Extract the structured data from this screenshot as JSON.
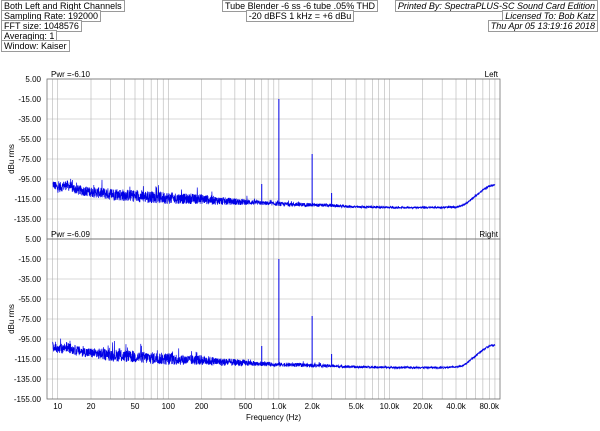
{
  "header": {
    "left": [
      "Both Left and Right Channels",
      "Sampling Rate: 192000",
      "FFT size: 1048576",
      "Averaging: 1",
      "Window: Kaiser"
    ],
    "center": [
      "Tube Blender -6 ss -6 tube .05% THD",
      "-20 dBFS 1 kHz = +6 dBu"
    ],
    "right": [
      "Printed By: SpectraPLUS-SC Sound Card Edition",
      "Licensed To: Bob Katz",
      "Thu Apr 05 13:19:16 2018"
    ]
  },
  "colors": {
    "trace": "#0000e6",
    "grid": "#b4b4b4",
    "frame": "#707070"
  },
  "chart_data": [
    {
      "type": "line",
      "channel_label": "Left",
      "pwr_label": "Pwr =-6.10",
      "ylabel": "dBu rms",
      "xlabel": "",
      "x_scale": "log",
      "xlim": [
        8,
        100000
      ],
      "ylim": [
        -155,
        5
      ],
      "y_ticks": [
        5,
        -15,
        -35,
        -55,
        -75,
        -95,
        -115,
        -135
      ],
      "y_tick_labels": [
        "5.00",
        "-15.00",
        "-35.00",
        "-55.00",
        "-75.00",
        "-95.00",
        "-115.00",
        "-135.00"
      ],
      "grid": true,
      "series": [
        {
          "x": [
            9,
            10,
            12,
            15,
            20,
            30,
            50,
            70,
            100,
            150,
            200,
            300,
            500,
            700,
            1000,
            1500,
            2000,
            3000,
            5000,
            7000,
            10000,
            20000,
            30000,
            40000,
            45000,
            50000,
            60000,
            70000,
            80000,
            90000
          ],
          "y": [
            -100,
            -104,
            -101,
            -106,
            -108,
            -110,
            -112,
            -113,
            -114,
            -115,
            -115,
            -117,
            -118,
            -119,
            -120,
            -120.5,
            -121,
            -121.5,
            -123,
            -123,
            -123.5,
            -123.5,
            -123.5,
            -123,
            -122,
            -119,
            -112,
            -106,
            -102,
            -101
          ],
          "noise": [
            4,
            5,
            5,
            5,
            5,
            6,
            6,
            6,
            6,
            5,
            5,
            4,
            3,
            2,
            2,
            2,
            1.8,
            1.5,
            1.2,
            1.2,
            1.1,
            1,
            1,
            1,
            1,
            1,
            1,
            1,
            1,
            1
          ]
        }
      ],
      "peaks": [
        {
          "x": 1000,
          "y": -15
        },
        {
          "x": 2000,
          "y": -70
        },
        {
          "x": 700,
          "y": -100
        },
        {
          "x": 3000,
          "y": -109
        }
      ]
    },
    {
      "type": "line",
      "channel_label": "Right",
      "pwr_label": "Pwr =-6.09",
      "ylabel": "dBu rms",
      "xlabel": "Frequency (Hz)",
      "x_scale": "log",
      "xlim": [
        8,
        100000
      ],
      "ylim": [
        -155,
        5
      ],
      "y_ticks": [
        5,
        -15,
        -35,
        -55,
        -75,
        -95,
        -115,
        -135,
        -155
      ],
      "y_tick_labels": [
        "5.00",
        "-15.00",
        "-35.00",
        "-55.00",
        "-75.00",
        "-95.00",
        "-115.00",
        "-135.00",
        "-155.00"
      ],
      "x_ticks": [
        10,
        20,
        50,
        100,
        200,
        500,
        1000,
        2000,
        5000,
        10000,
        20000,
        40000,
        80000
      ],
      "x_tick_labels": [
        "10",
        "20",
        "50",
        "100",
        "200",
        "500",
        "1.0k",
        "2.0k",
        "5.0k",
        "10.0k",
        "20.0k",
        "40.0k",
        "80.0k"
      ],
      "grid": true,
      "series": [
        {
          "x": [
            9,
            10,
            12,
            15,
            20,
            30,
            50,
            70,
            100,
            150,
            200,
            300,
            500,
            700,
            1000,
            1500,
            2000,
            3000,
            5000,
            7000,
            10000,
            20000,
            30000,
            40000,
            45000,
            50000,
            60000,
            70000,
            80000,
            90000
          ],
          "y": [
            -102,
            -106,
            -103,
            -107,
            -109,
            -111,
            -113,
            -114,
            -115,
            -116,
            -116,
            -118,
            -119,
            -120,
            -120.5,
            -121,
            -121.5,
            -122,
            -123,
            -123,
            -123.5,
            -123.5,
            -123.5,
            -123,
            -122,
            -119,
            -112,
            -106,
            -102,
            -101
          ],
          "noise": [
            4,
            5,
            5,
            5,
            5,
            6,
            6,
            6,
            6,
            5,
            5,
            4,
            3,
            2,
            2,
            2,
            1.8,
            1.5,
            1.2,
            1.2,
            1.1,
            1,
            1,
            1,
            1,
            1,
            1,
            1,
            1,
            1
          ]
        }
      ],
      "peaks": [
        {
          "x": 1000,
          "y": -15
        },
        {
          "x": 2000,
          "y": -72
        },
        {
          "x": 700,
          "y": -102
        },
        {
          "x": 3000,
          "y": -110
        }
      ]
    }
  ]
}
